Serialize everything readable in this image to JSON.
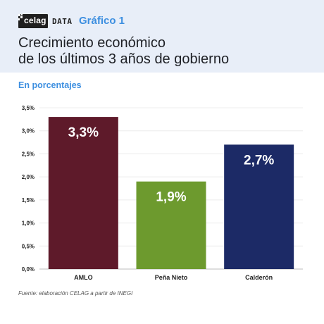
{
  "header": {
    "logo_text": "celag",
    "logo_suffix": "DATA",
    "chart_number": "Gráfico 1",
    "title_line1": "Crecimiento económico",
    "title_line2": "de los últimos 3 años de gobierno"
  },
  "subtitle": "En porcentajes",
  "source": "Fuente: elaboración CELAG a partir de INEGI",
  "colors": {
    "header_bg": "#e8eef8",
    "accent": "#3d8fe0"
  },
  "chart_data": {
    "type": "bar",
    "categories": [
      "AMLO",
      "Peña Nieto",
      "Calderón"
    ],
    "values": [
      3.3,
      1.9,
      2.7
    ],
    "data_labels": [
      "3,3%",
      "1,9%",
      "2,7%"
    ],
    "bar_colors": [
      "#5e1a2a",
      "#6d9a2e",
      "#1c2a66"
    ],
    "ylim": [
      0,
      3.5
    ],
    "yticks": [
      "0,0%",
      "0,5%",
      "1,0%",
      "1,5%",
      "2,0%",
      "2,5%",
      "3,0%",
      "3,5%"
    ],
    "grid": true,
    "xlabel": "",
    "ylabel": ""
  }
}
